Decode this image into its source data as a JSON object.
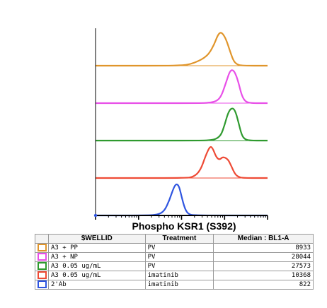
{
  "chart_data": {
    "type": "area",
    "xlabel": "Phospho KSR1 (S392)",
    "table": {
      "headers": [
        "$WELLID",
        "Treatment",
        "Median : BL1-A"
      ],
      "rows": [
        {
          "wellid": "A3 + PP",
          "treatment": "PV",
          "median": "8933",
          "color": "#e0952b"
        },
        {
          "wellid": "A3 + NP",
          "treatment": "PV",
          "median": "28044",
          "color": "#e84fe8"
        },
        {
          "wellid": "A3 0.05 ug/mL",
          "treatment": "PV",
          "median": "27573",
          "color": "#2f9a2f"
        },
        {
          "wellid": "A3 0.05 ug/mL",
          "treatment": "imatinib",
          "median": "10368",
          "color": "#ee4a35"
        },
        {
          "wellid": "2'Ab",
          "treatment": "imatinib",
          "median": "822",
          "color": "#2f55e0"
        }
      ]
    },
    "series": [
      {
        "color": "#e0952b",
        "points": [
          [
            0.0,
            0
          ],
          [
            0.4,
            0
          ],
          [
            0.5,
            0.01
          ],
          [
            0.55,
            0.04
          ],
          [
            0.6,
            0.14
          ],
          [
            0.63,
            0.22
          ],
          [
            0.66,
            0.35
          ],
          [
            0.69,
            0.62
          ],
          [
            0.71,
            0.88
          ],
          [
            0.725,
            0.97
          ],
          [
            0.74,
            0.93
          ],
          [
            0.76,
            0.75
          ],
          [
            0.78,
            0.45
          ],
          [
            0.8,
            0.16
          ],
          [
            0.82,
            0.04
          ],
          [
            0.85,
            0
          ],
          [
            1.0,
            0
          ]
        ]
      },
      {
        "color": "#e84fe8",
        "points": [
          [
            0.0,
            0
          ],
          [
            0.6,
            0
          ],
          [
            0.66,
            0.01
          ],
          [
            0.7,
            0.05
          ],
          [
            0.73,
            0.18
          ],
          [
            0.76,
            0.62
          ],
          [
            0.78,
            0.92
          ],
          [
            0.795,
            0.97
          ],
          [
            0.81,
            0.9
          ],
          [
            0.83,
            0.62
          ],
          [
            0.85,
            0.22
          ],
          [
            0.87,
            0.05
          ],
          [
            0.9,
            0
          ],
          [
            1.0,
            0
          ]
        ]
      },
      {
        "color": "#2f9a2f",
        "points": [
          [
            0.0,
            0
          ],
          [
            0.6,
            0
          ],
          [
            0.66,
            0.01
          ],
          [
            0.7,
            0.04
          ],
          [
            0.73,
            0.16
          ],
          [
            0.75,
            0.45
          ],
          [
            0.77,
            0.8
          ],
          [
            0.79,
            0.95
          ],
          [
            0.81,
            0.9
          ],
          [
            0.83,
            0.55
          ],
          [
            0.85,
            0.15
          ],
          [
            0.87,
            0.03
          ],
          [
            0.9,
            0
          ],
          [
            1.0,
            0
          ]
        ]
      },
      {
        "color": "#ee4a35",
        "points": [
          [
            0.0,
            0
          ],
          [
            0.52,
            0
          ],
          [
            0.57,
            0.03
          ],
          [
            0.61,
            0.22
          ],
          [
            0.64,
            0.65
          ],
          [
            0.665,
            0.92
          ],
          [
            0.68,
            0.88
          ],
          [
            0.7,
            0.62
          ],
          [
            0.72,
            0.52
          ],
          [
            0.74,
            0.62
          ],
          [
            0.77,
            0.55
          ],
          [
            0.79,
            0.34
          ],
          [
            0.81,
            0.12
          ],
          [
            0.83,
            0.03
          ],
          [
            0.86,
            0
          ],
          [
            1.0,
            0
          ]
        ]
      },
      {
        "color": "#2f55e0",
        "points": [
          [
            0.0,
            0
          ],
          [
            0.3,
            0
          ],
          [
            0.36,
            0.02
          ],
          [
            0.4,
            0.12
          ],
          [
            0.43,
            0.45
          ],
          [
            0.455,
            0.82
          ],
          [
            0.47,
            0.92
          ],
          [
            0.485,
            0.86
          ],
          [
            0.5,
            0.55
          ],
          [
            0.52,
            0.18
          ],
          [
            0.54,
            0.04
          ],
          [
            0.57,
            0
          ],
          [
            1.0,
            0
          ]
        ]
      }
    ]
  }
}
